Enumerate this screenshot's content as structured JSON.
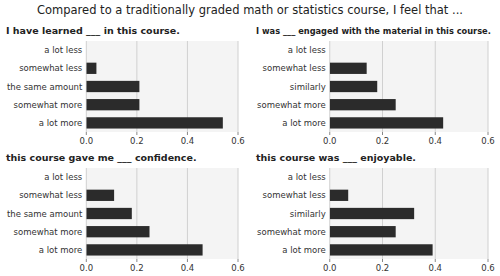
{
  "title": "Compared to a traditionally graded math or statistics course, I feel that ...",
  "chart_data": [
    {
      "type": "bar",
      "orientation": "horizontal",
      "subtitle": "I have learned ___ in this course.",
      "categories": [
        "a lot less",
        "somewhat less",
        "the same amount",
        "somewhat more",
        "a lot more"
      ],
      "values": [
        0.0,
        0.04,
        0.21,
        0.21,
        0.54
      ],
      "color": "#2b2b2b",
      "xlim": [
        0,
        0.6
      ],
      "xticks": [
        {
          "value": 0.0,
          "label": "0.0"
        },
        0.2,
        0.4,
        0.6
      ],
      "grid": true
    },
    {
      "type": "bar",
      "orientation": "horizontal",
      "subtitle": "I was ___ engaged with the material in this course.",
      "categories": [
        "a lot less",
        "somewhat less",
        "similarly",
        "somewhat more",
        "a lot more"
      ],
      "values": [
        0.0,
        0.14,
        0.18,
        0.25,
        0.43
      ],
      "color": "#2b2b2b",
      "xlim": [
        0,
        0.6
      ],
      "xticks": [
        {
          "value": 0.0,
          "label": "0.0"
        },
        0.2,
        0.4,
        0.6
      ],
      "grid": true
    },
    {
      "type": "bar",
      "orientation": "horizontal",
      "subtitle": "this course gave me ___ confidence.",
      "categories": [
        "a lot less",
        "somewhat less",
        "the same amount",
        "somewhat more",
        "a lot more"
      ],
      "values": [
        0.0,
        0.11,
        0.18,
        0.25,
        0.46
      ],
      "color": "#2b2b2b",
      "xlim": [
        0,
        0.6
      ],
      "xticks": [
        {
          "value": 0.0,
          "label": "0.0"
        },
        0.2,
        0.4,
        0.6
      ],
      "grid": true
    },
    {
      "type": "bar",
      "orientation": "horizontal",
      "subtitle": "this course was ___ enjoyable.",
      "categories": [
        "a lot less",
        "somewhat less",
        "similarly",
        "somewhat more",
        "a lot more"
      ],
      "values": [
        0.0,
        0.07,
        0.32,
        0.25,
        0.39
      ],
      "color": "#2b2b2b",
      "xlim": [
        0,
        0.6
      ],
      "xticks": [
        {
          "value": 0.0,
          "label": "0.0"
        },
        0.2,
        0.4,
        0.6
      ],
      "grid": true
    }
  ]
}
